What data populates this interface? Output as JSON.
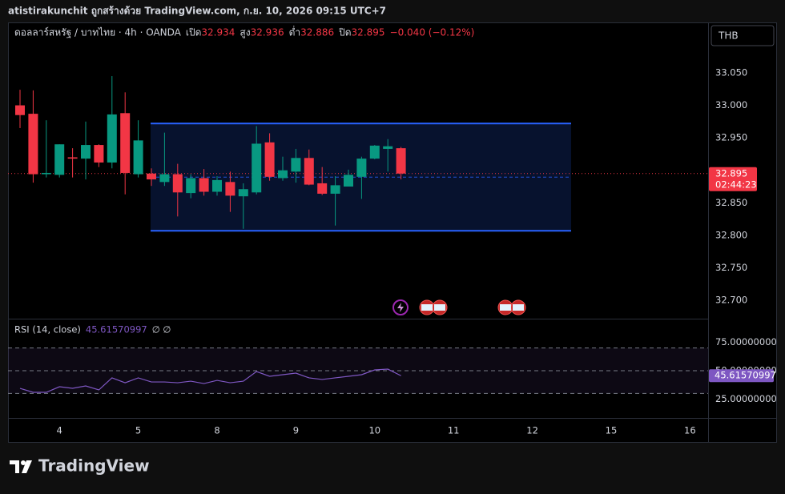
{
  "header": {
    "caption": "atistirakunchit ถูกสร้างด้วย TradingView.com, ก.ย. 10, 2026 09:15 UTC+7"
  },
  "footer": {
    "brand": "TradingView"
  },
  "chart_data": {
    "type": "candlestick",
    "symbol": "ดอลลาร์สหรัฐ / บาทไทย · 4h · OANDA",
    "ohlc_labels": {
      "open": "เปิด",
      "high": "สูง",
      "low": "ต่ำ",
      "close": "ปิด"
    },
    "change": "−0.040 (−0.12%)",
    "currency": "THB",
    "countdown": "02:44:23",
    "up_color": "#089981",
    "down_color": "#f23645",
    "candles": {
      "open": [
        33.0,
        32.987,
        32.894,
        32.893,
        32.92,
        32.918,
        32.939,
        32.912,
        32.988,
        32.894,
        32.895,
        32.882,
        32.894,
        32.865,
        32.888,
        32.867,
        32.882,
        32.86,
        32.866,
        32.943,
        32.888,
        32.898,
        32.919,
        32.88,
        32.864,
        32.875,
        32.89,
        32.918,
        32.933,
        32.934
      ],
      "high": [
        33.024,
        33.023,
        32.977,
        32.94,
        32.934,
        32.975,
        32.94,
        33.045,
        33.02,
        32.977,
        32.903,
        32.958,
        32.91,
        32.894,
        32.902,
        32.891,
        32.898,
        32.88,
        32.968,
        32.957,
        32.921,
        32.933,
        32.932,
        32.905,
        32.891,
        32.901,
        32.921,
        32.939,
        32.948,
        32.936
      ],
      "low": [
        32.965,
        32.881,
        32.889,
        32.889,
        32.889,
        32.886,
        32.905,
        32.903,
        32.863,
        32.889,
        32.876,
        32.876,
        32.829,
        32.857,
        32.861,
        32.861,
        32.836,
        32.81,
        32.863,
        32.884,
        32.884,
        32.881,
        32.877,
        32.862,
        32.815,
        32.892,
        32.856,
        32.917,
        32.898,
        32.886
      ],
      "close": [
        32.985,
        32.894,
        32.896,
        32.94,
        32.918,
        32.939,
        32.912,
        32.986,
        32.896,
        32.946,
        32.886,
        32.894,
        32.866,
        32.888,
        32.867,
        32.885,
        32.861,
        32.871,
        32.941,
        32.89,
        32.9,
        32.919,
        32.878,
        32.864,
        32.877,
        32.893,
        32.918,
        32.938,
        32.937,
        32.895
      ]
    },
    "xlim": [
      -0.915,
      52.38
    ],
    "xticks": [
      {
        "value": 3,
        "label": "4"
      },
      {
        "value": 9,
        "label": "5"
      },
      {
        "value": 15,
        "label": "8"
      },
      {
        "value": 21,
        "label": "9"
      },
      {
        "value": 27,
        "label": "10"
      },
      {
        "value": 33,
        "label": "11"
      },
      {
        "value": 39,
        "label": "12"
      },
      {
        "value": 45,
        "label": "15"
      },
      {
        "value": 51,
        "label": "16"
      }
    ],
    "ylim": [
      32.6717,
      33.1276
    ],
    "yticks": [
      {
        "value": 33.05,
        "label": "33.050"
      },
      {
        "value": 33.0,
        "label": "33.000"
      },
      {
        "value": 32.95,
        "label": "32.950"
      },
      {
        "value": 32.85,
        "label": "32.850"
      },
      {
        "value": 32.8,
        "label": "32.800"
      },
      {
        "value": 32.75,
        "label": "32.750"
      },
      {
        "value": 32.7,
        "label": "32.700"
      }
    ],
    "range_box": {
      "x": [
        9.94,
        41.95
      ],
      "y": [
        32.807,
        32.972
      ],
      "color": "#2962ff"
    },
    "rsi": {
      "label": "RSI (14, close)",
      "extra": "∅ ∅",
      "color": "#7e57c2",
      "values": [
        34.5,
        31.0,
        31.0,
        35.9,
        34.5,
        36.6,
        33.1,
        43.7,
        39.4,
        43.7,
        40.1,
        40.1,
        39.4,
        40.8,
        38.7,
        41.5,
        39.4,
        40.8,
        49.3,
        45.1,
        46.5,
        47.9,
        43.7,
        42.3,
        43.7,
        45.1,
        46.5,
        50.7,
        51.4,
        45.61570997
      ],
      "ylim": [
        8.45,
        94.4
      ],
      "yticks": [
        {
          "value": 75,
          "label": "75.00000000"
        },
        {
          "value": 50,
          "label": "50.00000000"
        },
        {
          "value": 25,
          "label": "25.00000000"
        }
      ],
      "bands": [
        70,
        50,
        30
      ]
    }
  }
}
